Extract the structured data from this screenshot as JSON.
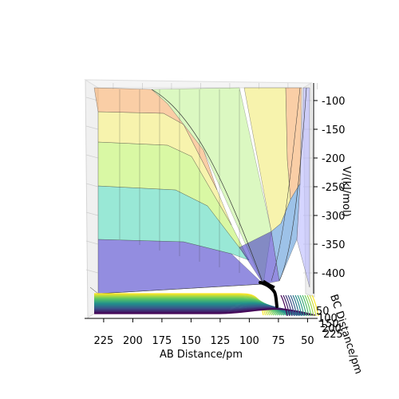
{
  "chart_data": {
    "type": "surface-3d",
    "xlabel": "AB Distance/pm",
    "ylabel": "BC Distance/pm",
    "zlabel": "V/(kJ/mol)",
    "x_ticks": [
      225,
      200,
      175,
      150,
      125,
      100,
      75,
      50
    ],
    "y_ticks": [
      50,
      100,
      150,
      200,
      225
    ],
    "z_ticks": [
      -100,
      -150,
      -200,
      -250,
      -300,
      -350,
      -400
    ],
    "xlim": [
      240,
      40
    ],
    "zlim": [
      -440,
      -75
    ],
    "trajectory": {
      "color": "#000000"
    },
    "colors": {
      "surface_bands": [
        "#3b2fc7",
        "#4d8fd6",
        "#45d6b5",
        "#b9f25a",
        "#f0ea6a",
        "#f5a65c",
        "#e05a8a"
      ],
      "contour_low": "#440154",
      "contour_high": "#fde725"
    },
    "grid": true
  }
}
